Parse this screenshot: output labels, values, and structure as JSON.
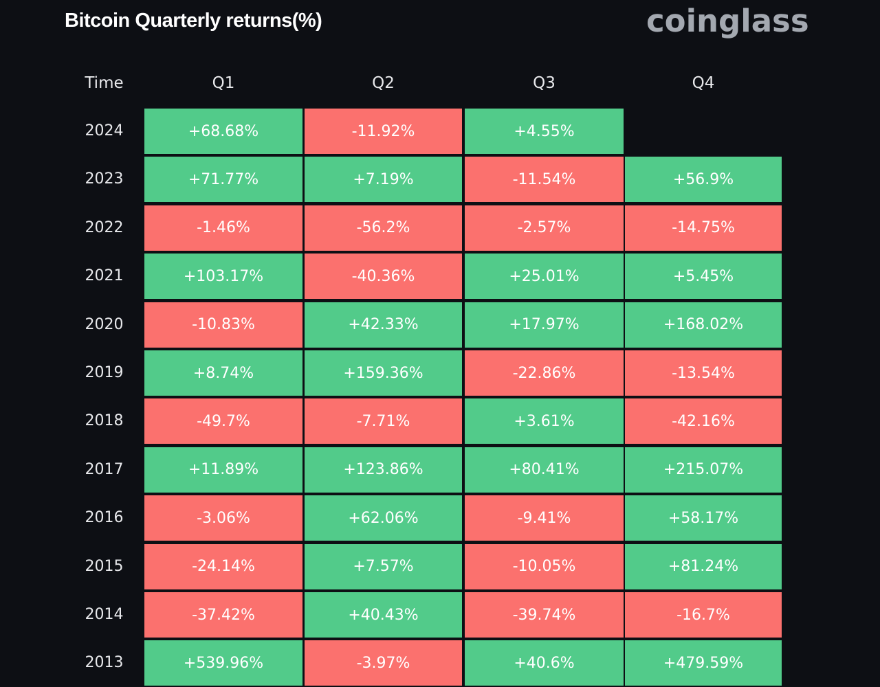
{
  "header": {
    "title": "Bitcoin Quarterly returns(%)",
    "logo_text": "coinglass"
  },
  "colors": {
    "positive": "#52cb8a",
    "negative": "#fb716e",
    "background": "#0d0f14"
  },
  "chart_data": {
    "type": "table",
    "title": "Bitcoin Quarterly returns(%)",
    "row_header": "Time",
    "columns": [
      "Q1",
      "Q2",
      "Q3",
      "Q4"
    ],
    "rows": [
      {
        "year": "2024",
        "values": [
          "+68.68%",
          "-11.92%",
          "+4.55%",
          null
        ]
      },
      {
        "year": "2023",
        "values": [
          "+71.77%",
          "+7.19%",
          "-11.54%",
          "+56.9%"
        ]
      },
      {
        "year": "2022",
        "values": [
          "-1.46%",
          "-56.2%",
          "-2.57%",
          "-14.75%"
        ]
      },
      {
        "year": "2021",
        "values": [
          "+103.17%",
          "-40.36%",
          "+25.01%",
          "+5.45%"
        ]
      },
      {
        "year": "2020",
        "values": [
          "-10.83%",
          "+42.33%",
          "+17.97%",
          "+168.02%"
        ]
      },
      {
        "year": "2019",
        "values": [
          "+8.74%",
          "+159.36%",
          "-22.86%",
          "-13.54%"
        ]
      },
      {
        "year": "2018",
        "values": [
          "-49.7%",
          "-7.71%",
          "+3.61%",
          "-42.16%"
        ]
      },
      {
        "year": "2017",
        "values": [
          "+11.89%",
          "+123.86%",
          "+80.41%",
          "+215.07%"
        ]
      },
      {
        "year": "2016",
        "values": [
          "-3.06%",
          "+62.06%",
          "-9.41%",
          "+58.17%"
        ]
      },
      {
        "year": "2015",
        "values": [
          "-24.14%",
          "+7.57%",
          "-10.05%",
          "+81.24%"
        ]
      },
      {
        "year": "2014",
        "values": [
          "-37.42%",
          "+40.43%",
          "-39.74%",
          "-16.7%"
        ]
      },
      {
        "year": "2013",
        "values": [
          "+539.96%",
          "-3.97%",
          "+40.6%",
          "+479.59%"
        ]
      }
    ]
  }
}
